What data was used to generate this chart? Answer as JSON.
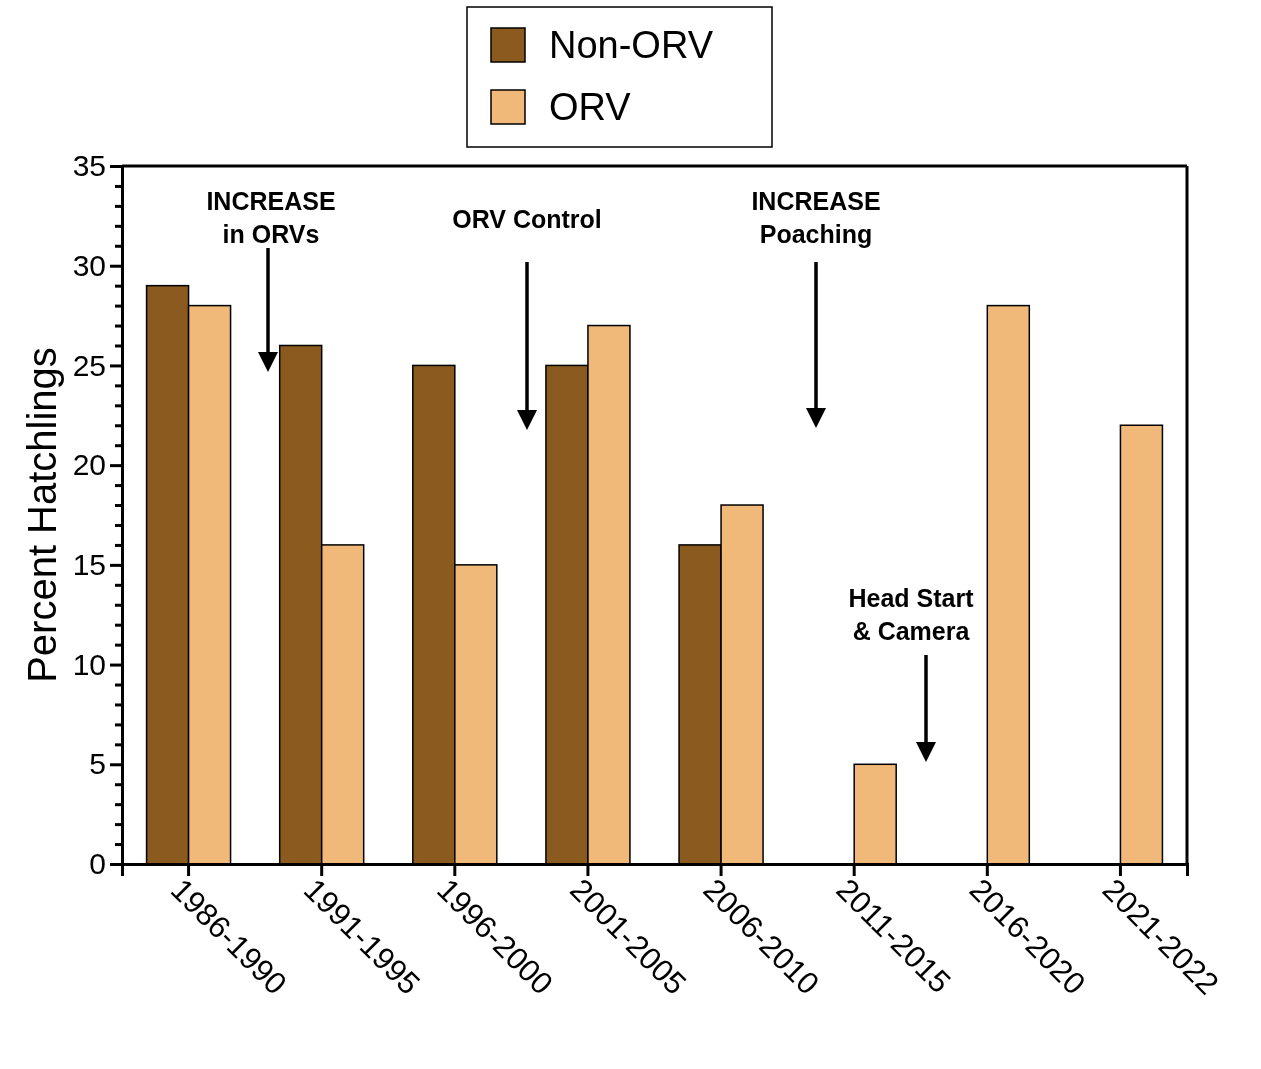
{
  "chart_data": {
    "type": "bar",
    "ylabel": "Percent Hatchlings",
    "categories": [
      "1986-1990",
      "1991-1995",
      "1996-2000",
      "2001-2005",
      "2006-2010",
      "2011-2015",
      "2016-2020",
      "2021-2022"
    ],
    "series": [
      {
        "name": "Non-ORV",
        "color": "#8b5a1e",
        "values": [
          29,
          26,
          25,
          25,
          16,
          null,
          null,
          null
        ]
      },
      {
        "name": "ORV",
        "color": "#f0b97a",
        "values": [
          28,
          16,
          15,
          27,
          18,
          5,
          28,
          22
        ]
      }
    ],
    "ylim": [
      0,
      35
    ],
    "yticks": [
      0,
      {
        "value": 1,
        "label": null
      },
      {
        "value": 2,
        "label": null
      },
      {
        "value": 3,
        "label": null
      },
      {
        "value": 4,
        "label": null
      },
      5,
      {
        "value": 6,
        "label": null
      },
      {
        "value": 7,
        "label": null
      },
      {
        "value": 8,
        "label": null
      },
      {
        "value": 9,
        "label": null
      },
      10,
      {
        "value": 11,
        "label": null
      },
      {
        "value": 12,
        "label": null
      },
      {
        "value": 13,
        "label": null
      },
      {
        "value": 14,
        "label": null
      },
      15,
      {
        "value": 16,
        "label": null
      },
      {
        "value": 17,
        "label": null
      },
      {
        "value": 18,
        "label": null
      },
      {
        "value": 19,
        "label": null
      },
      20,
      {
        "value": 21,
        "label": null
      },
      {
        "value": 22,
        "label": null
      },
      {
        "value": 23,
        "label": null
      },
      {
        "value": 24,
        "label": null
      },
      25,
      {
        "value": 26,
        "label": null
      },
      {
        "value": 27,
        "label": null
      },
      {
        "value": 28,
        "label": null
      },
      {
        "value": 29,
        "label": null
      },
      30,
      {
        "value": 31,
        "label": null
      },
      {
        "value": 32,
        "label": null
      },
      {
        "value": 33,
        "label": null
      },
      {
        "value": 34,
        "label": null
      },
      35
    ],
    "legend": "top",
    "grid": false,
    "annotations": [
      "INCREASE\nin ORVs",
      "ORV Control",
      "INCREASE\nPoaching",
      "Head Start\n& Camera"
    ]
  }
}
